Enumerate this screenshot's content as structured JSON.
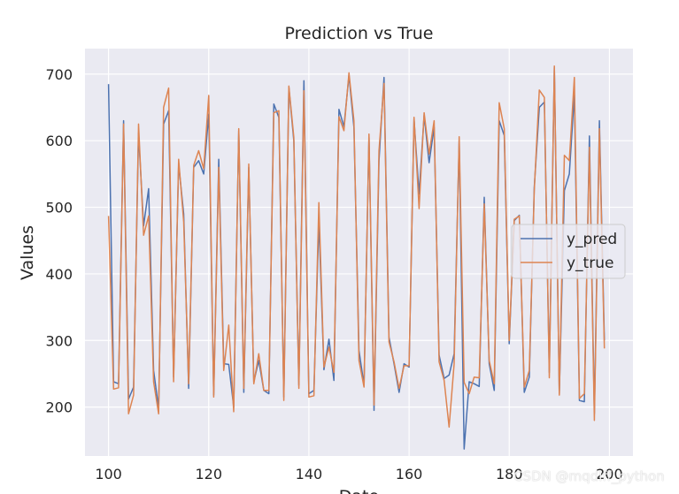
{
  "chart_data": {
    "type": "line",
    "title": "Prediction vs True",
    "xlabel": "Date",
    "ylabel": "Values",
    "xlim": [
      95.3,
      204.7
    ],
    "ylim": [
      126.5,
      738.3
    ],
    "xticks": [
      100,
      120,
      140,
      160,
      180,
      200
    ],
    "yticks": [
      200,
      300,
      400,
      500,
      600,
      700
    ],
    "grid": true,
    "legend_position": "center-right",
    "background": "#EAEAF2",
    "series": [
      {
        "name": "y_pred",
        "color": "#4C72B0",
        "x": [
          100,
          101,
          102,
          103,
          104,
          105,
          106,
          107,
          108,
          109,
          110,
          111,
          112,
          113,
          114,
          115,
          116,
          117,
          118,
          119,
          120,
          121,
          122,
          123,
          124,
          125,
          126,
          127,
          128,
          129,
          130,
          131,
          132,
          133,
          134,
          135,
          136,
          137,
          138,
          139,
          140,
          141,
          142,
          143,
          144,
          145,
          146,
          147,
          148,
          149,
          150,
          151,
          152,
          153,
          154,
          155,
          156,
          157,
          158,
          159,
          160,
          161,
          162,
          163,
          164,
          165,
          166,
          167,
          168,
          169,
          170,
          171,
          172,
          173,
          174,
          175,
          176,
          177,
          178,
          179,
          180,
          181,
          182,
          183,
          184,
          185,
          186,
          187,
          188,
          189,
          190,
          191,
          192,
          193,
          194,
          195,
          196,
          197,
          198,
          199
        ],
        "values": [
          685,
          238,
          235,
          630,
          212,
          230,
          612,
          472,
          528,
          255,
          198,
          625,
          645,
          245,
          565,
          490,
          228,
          560,
          570,
          550,
          640,
          218,
          572,
          265,
          264,
          200,
          615,
          222,
          560,
          238,
          270,
          225,
          220,
          655,
          635,
          215,
          680,
          600,
          233,
          690,
          220,
          225,
          480,
          256,
          302,
          240,
          647,
          621,
          698,
          620,
          285,
          233,
          605,
          195,
          570,
          695,
          305,
          265,
          222,
          265,
          260,
          632,
          520,
          638,
          567,
          620,
          278,
          243,
          248,
          280,
          600,
          137,
          238,
          235,
          231,
          515,
          265,
          225,
          630,
          608,
          295,
          480,
          488,
          222,
          245,
          530,
          650,
          658,
          252,
          710,
          220,
          525,
          550,
          670,
          210,
          208,
          607,
          190,
          630,
          300
        ]
      },
      {
        "name": "y_true",
        "color": "#DD8452",
        "x": [
          100,
          101,
          102,
          103,
          104,
          105,
          106,
          107,
          108,
          109,
          110,
          111,
          112,
          113,
          114,
          115,
          116,
          117,
          118,
          119,
          120,
          121,
          122,
          123,
          124,
          125,
          126,
          127,
          128,
          129,
          130,
          131,
          132,
          133,
          134,
          135,
          136,
          137,
          138,
          139,
          140,
          141,
          142,
          143,
          144,
          145,
          146,
          147,
          148,
          149,
          150,
          151,
          152,
          153,
          154,
          155,
          156,
          157,
          158,
          159,
          160,
          161,
          162,
          163,
          164,
          165,
          166,
          167,
          168,
          169,
          170,
          171,
          172,
          173,
          174,
          175,
          176,
          177,
          178,
          179,
          180,
          181,
          182,
          183,
          184,
          185,
          186,
          187,
          188,
          189,
          190,
          191,
          192,
          193,
          194,
          195,
          196,
          197,
          198,
          199
        ],
        "values": [
          487,
          227,
          229,
          625,
          190,
          218,
          625,
          458,
          487,
          238,
          190,
          650,
          679,
          238,
          572,
          478,
          235,
          563,
          585,
          558,
          668,
          215,
          560,
          255,
          323,
          193,
          618,
          228,
          565,
          235,
          280,
          225,
          225,
          642,
          645,
          210,
          682,
          605,
          228,
          675,
          215,
          217,
          507,
          260,
          290,
          252,
          636,
          615,
          702,
          630,
          270,
          230,
          610,
          203,
          585,
          686,
          298,
          268,
          228,
          262,
          262,
          635,
          498,
          642,
          580,
          630,
          268,
          240,
          170,
          265,
          606,
          237,
          220,
          245,
          244,
          505,
          270,
          235,
          657,
          618,
          300,
          482,
          487,
          230,
          255,
          525,
          676,
          665,
          244,
          712,
          218,
          578,
          570,
          695,
          213,
          220,
          590,
          180,
          618,
          288
        ]
      }
    ]
  },
  "watermark": "CSDN @mqdlff_python"
}
